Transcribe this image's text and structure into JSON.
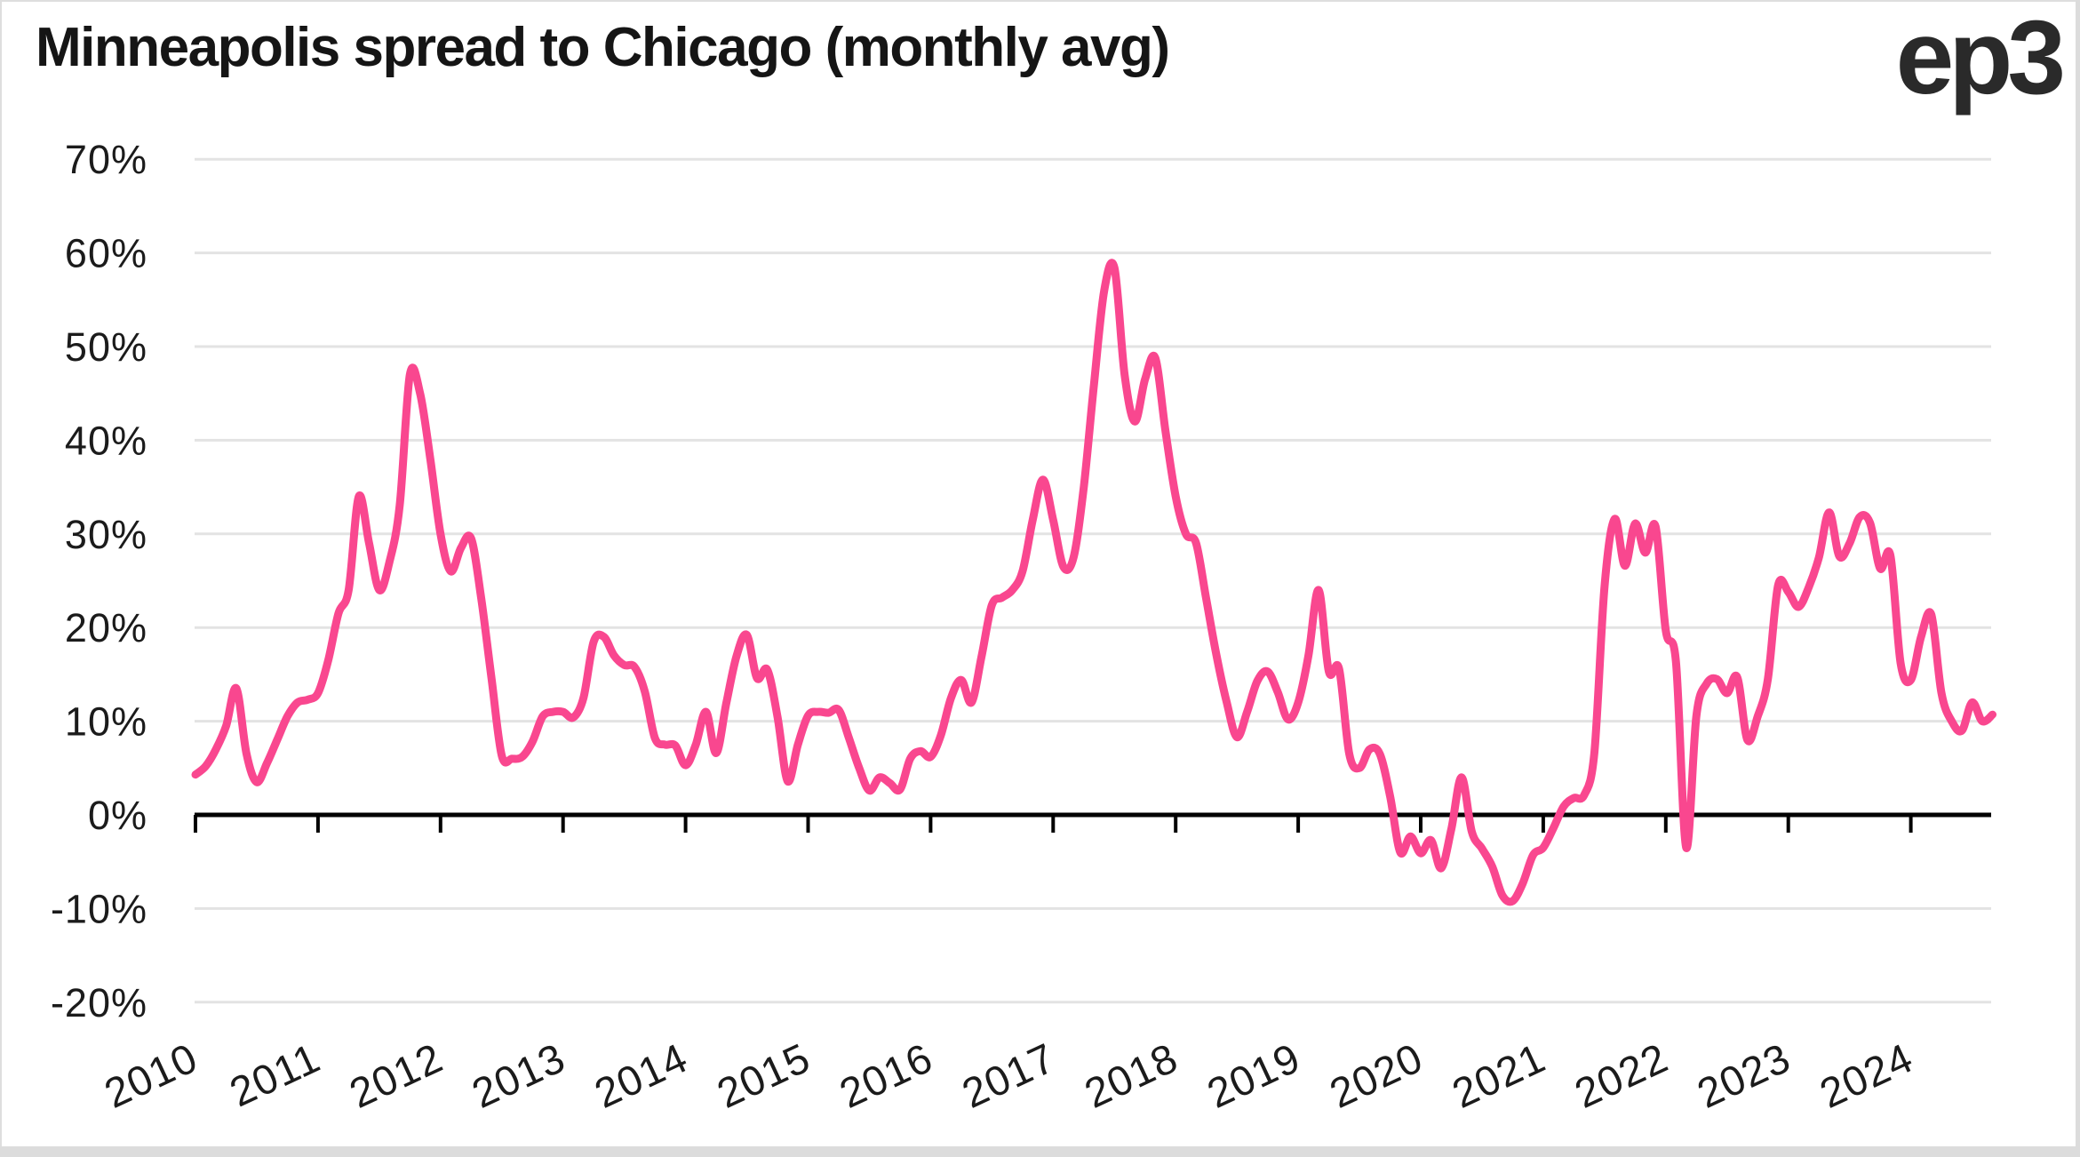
{
  "header": {
    "title": "Minneapolis spread to Chicago (monthly avg)",
    "logo": "ep3"
  },
  "chart_data": {
    "type": "line",
    "title": "Minneapolis spread to Chicago (monthly avg)",
    "xlabel": "",
    "ylabel": "",
    "ylim": [
      -20,
      70
    ],
    "grid": "horizontal",
    "legend": "none",
    "line_color": "#f9478f",
    "grid_color": "#e3e3e3",
    "axis_color": "#000000",
    "y_ticks": [
      {
        "label": "70%",
        "value": 70
      },
      {
        "label": "60%",
        "value": 60
      },
      {
        "label": "50%",
        "value": 50
      },
      {
        "label": "40%",
        "value": 40
      },
      {
        "label": "30%",
        "value": 30
      },
      {
        "label": "20%",
        "value": 20
      },
      {
        "label": "10%",
        "value": 10
      },
      {
        "label": "0%",
        "value": 0
      },
      {
        "label": "-10%",
        "value": -10
      },
      {
        "label": "-20%",
        "value": -20
      }
    ],
    "x_ticks": [
      "2010",
      "2011",
      "2012",
      "2013",
      "2014",
      "2015",
      "2016",
      "2017",
      "2018",
      "2019",
      "2020",
      "2021",
      "2022",
      "2023",
      "2024"
    ],
    "series": [
      {
        "name": "Minneapolis spread to Chicago",
        "start_month": "2010-01",
        "frequency": "monthly",
        "unit": "%",
        "values": [
          4.3,
          5.2,
          7.0,
          9.5,
          13.5,
          6.5,
          3.5,
          5.5,
          8.0,
          10.5,
          12.0,
          12.3,
          13.0,
          16.5,
          21.5,
          24.0,
          34.0,
          29.0,
          24.0,
          27.0,
          33.0,
          47.0,
          45.0,
          38.0,
          30.0,
          26.0,
          28.5,
          29.5,
          23.0,
          14.5,
          6.3,
          6.0,
          6.2,
          7.8,
          10.5,
          11.0,
          11.0,
          10.4,
          12.5,
          18.5,
          19.0,
          17.0,
          16.0,
          15.8,
          13.2,
          8.2,
          7.5,
          7.4,
          5.3,
          7.5,
          11.0,
          6.6,
          12.0,
          17.0,
          19.2,
          14.6,
          15.5,
          10.5,
          3.6,
          7.5,
          10.6,
          11.0,
          10.9,
          11.2,
          8.2,
          5.0,
          2.6,
          4.0,
          3.4,
          2.7,
          6.0,
          6.8,
          6.2,
          8.5,
          12.5,
          14.4,
          12.0,
          17.0,
          22.4,
          23.2,
          24.0,
          26.0,
          31.5,
          35.8,
          31.5,
          26.5,
          27.5,
          35.0,
          46.0,
          56.0,
          58.4,
          47.0,
          42.0,
          46.5,
          48.8,
          41.0,
          34.0,
          30.0,
          29.0,
          23.0,
          17.0,
          12.0,
          8.3,
          11.0,
          14.3,
          15.3,
          13.1,
          10.2,
          12.0,
          17.0,
          24.0,
          15.3,
          15.6,
          6.5,
          5.0,
          7.0,
          6.5,
          2.0,
          -4.0,
          -2.3,
          -4.1,
          -2.7,
          -5.7,
          -1.5,
          4.0,
          -1.8,
          -3.6,
          -5.5,
          -8.6,
          -9.2,
          -7.3,
          -4.3,
          -3.5,
          -1.4,
          0.9,
          1.8,
          2.1,
          6.6,
          24.4,
          31.6,
          26.6,
          31.1,
          28.0,
          30.8,
          19.7,
          16.3,
          -3.5,
          10.6,
          14.0,
          14.5,
          13.0,
          14.7,
          8.0,
          10.5,
          14.5,
          24.5,
          23.8,
          22.2,
          24.3,
          27.5,
          32.3,
          27.6,
          29.0,
          31.8,
          31.2,
          26.3,
          27.7,
          16.2,
          14.4,
          19.0,
          21.4,
          13.0,
          10.0,
          9.0,
          12.0,
          10.0,
          10.7
        ]
      }
    ]
  }
}
